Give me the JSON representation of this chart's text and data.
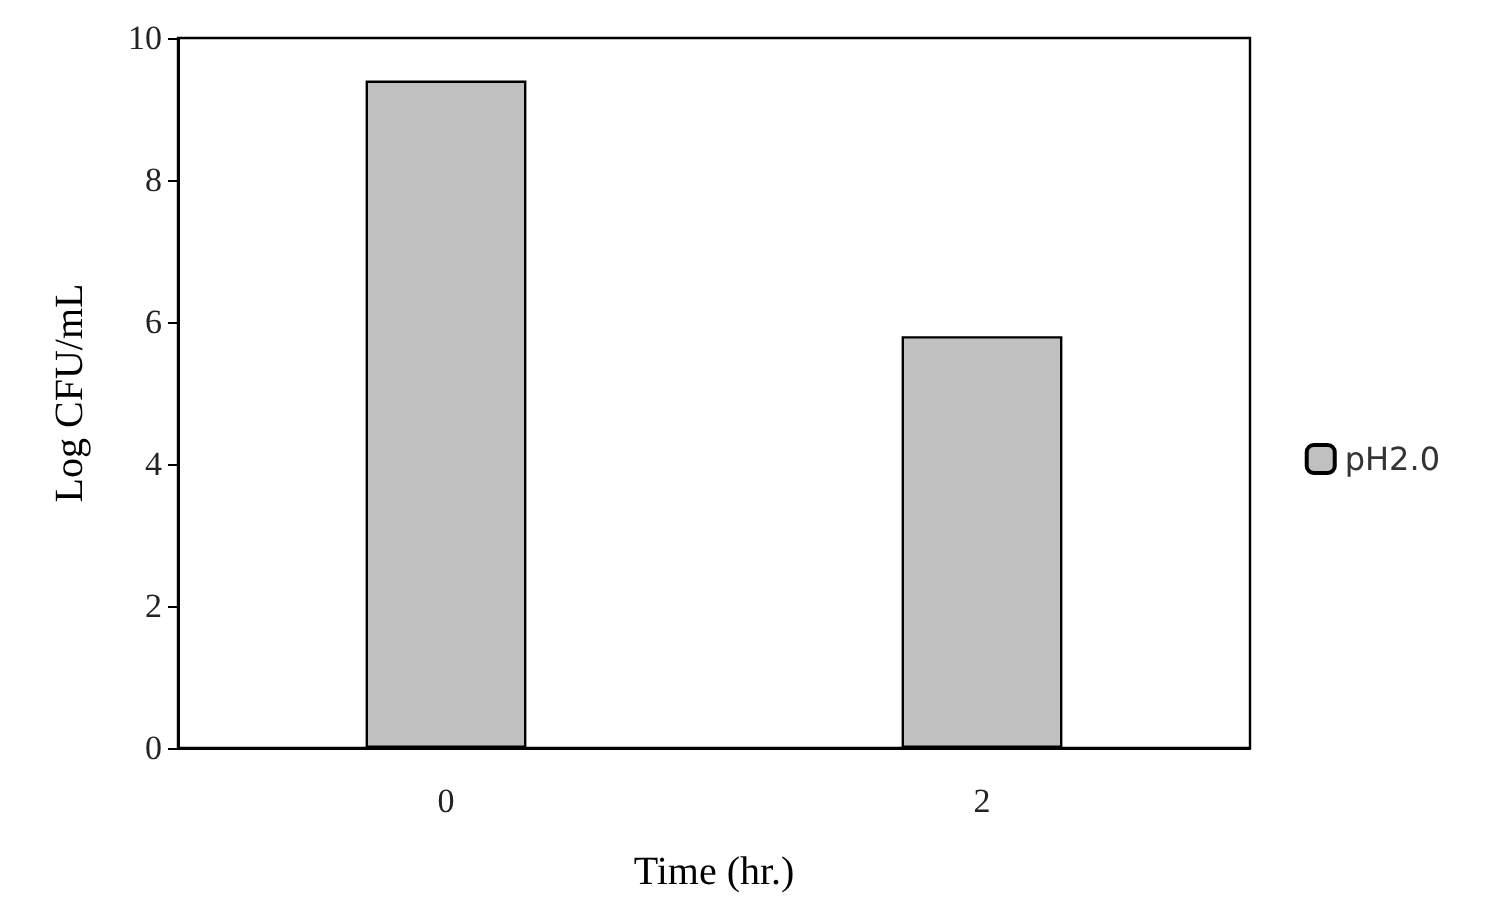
{
  "chart_data": {
    "type": "bar",
    "categories": [
      "0",
      "2"
    ],
    "xlabel": "Time (hr.)",
    "ylabel": "Log CFU/mL",
    "series": [
      {
        "name": "pH2.0",
        "color": "#c0c0c0",
        "values": [
          9.4,
          5.8
        ]
      }
    ],
    "ylim": [
      0,
      10
    ],
    "yticks": [
      0,
      2,
      4,
      6,
      8,
      10
    ],
    "grid": false,
    "legend": "right"
  }
}
